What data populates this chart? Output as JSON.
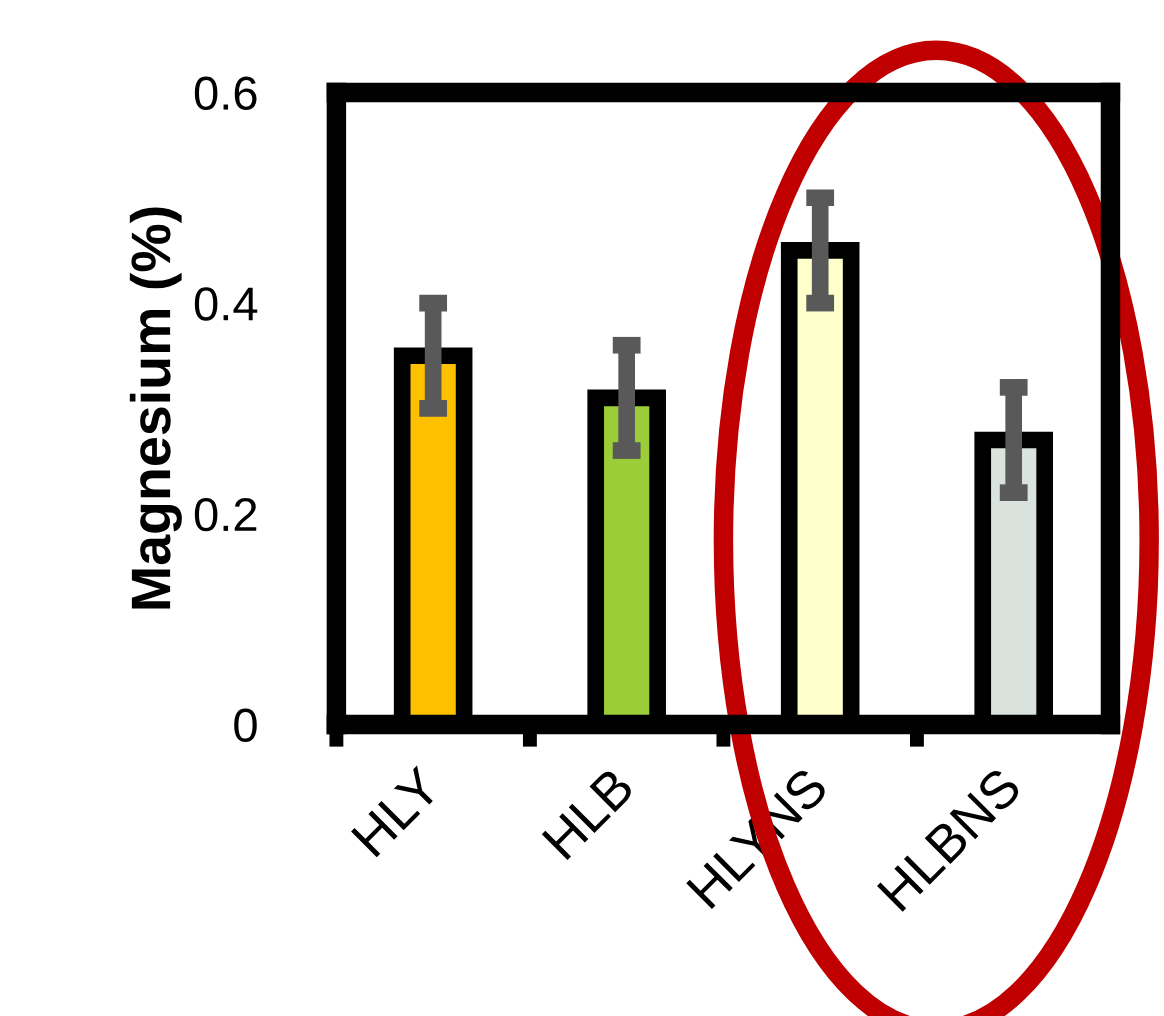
{
  "chart_data": {
    "type": "bar",
    "ylabel": "Magnesium (%)",
    "categories": [
      "HLY",
      "HLB",
      "HLYNS",
      "HLBNS"
    ],
    "values": [
      0.35,
      0.31,
      0.45,
      0.27
    ],
    "colors": [
      "#ffc000",
      "#9acd38",
      "#ffffcc",
      "#d9e2dc"
    ],
    "errors": [
      0.05,
      0.05,
      0.05,
      0.05
    ],
    "ylim": [
      0,
      0.6
    ],
    "yticks": [
      0,
      0.2,
      0.4,
      0.6
    ],
    "grid": false
  }
}
